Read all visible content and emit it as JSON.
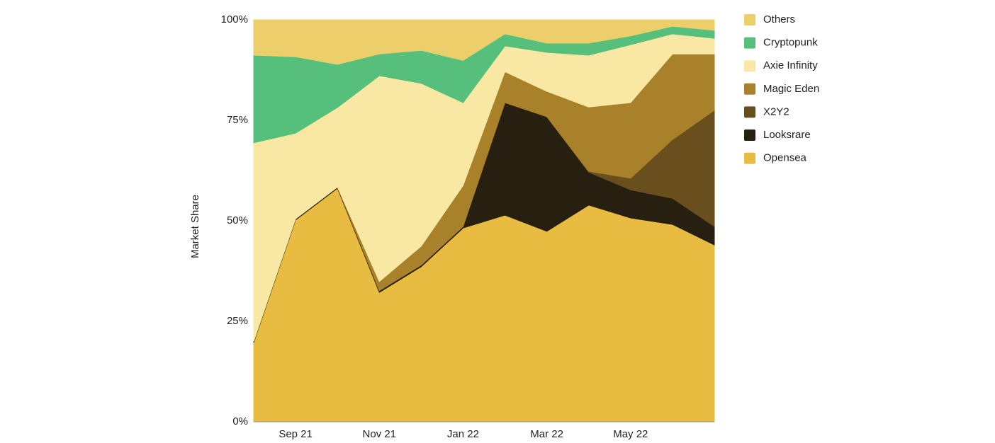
{
  "chart_data": {
    "type": "stacked_area",
    "y_label": "Market Share",
    "categories": [
      null,
      "Sep 21",
      null,
      "Nov 21",
      null,
      "Jan 22",
      null,
      "Mar 22",
      null,
      "May 22",
      null,
      null
    ],
    "series": [
      {
        "name": "Opensea",
        "color": "#e8bc41",
        "values": [
          19.7,
          50.2,
          58.1,
          32.2,
          38.6,
          48.2,
          51.4,
          47.4,
          53.9,
          50.7,
          49.1,
          44.0
        ]
      },
      {
        "name": "Looksrare",
        "color": "#271f10",
        "values": [
          0.3,
          0.3,
          0.3,
          0.4,
          0.4,
          0.4,
          28.0,
          28.5,
          8.2,
          7.0,
          6.5,
          4.6
        ]
      },
      {
        "name": "X2Y2",
        "color": "#694f1e",
        "values": [
          0,
          0,
          0,
          0,
          0,
          0,
          0,
          0,
          0.2,
          2.9,
          14.6,
          28.9
        ]
      },
      {
        "name": "Magic Eden",
        "color": "#a8812a",
        "values": [
          0,
          0,
          0,
          2.3,
          4.7,
          10.2,
          7.7,
          6.3,
          16.0,
          18.8,
          21.3,
          14.0
        ]
      },
      {
        "name": "Axie Infinity",
        "color": "#f8e8a3",
        "values": [
          49.4,
          21.3,
          19.8,
          51.2,
          40.5,
          20.6,
          6.4,
          9.7,
          12.9,
          14.4,
          5.0,
          3.9
        ]
      },
      {
        "name": "Cryptopunk",
        "color": "#57bf7c",
        "values": [
          21.8,
          19.0,
          10.7,
          5.4,
          8.2,
          10.5,
          3.0,
          2.3,
          3.0,
          2.2,
          1.9,
          2.0
        ]
      },
      {
        "name": "Others",
        "color": "#eccf6b",
        "values": [
          8.8,
          9.2,
          11.1,
          8.5,
          7.6,
          10.1,
          3.5,
          5.8,
          5.8,
          4.0,
          1.6,
          2.6
        ]
      }
    ],
    "ylim": [
      0,
      100
    ],
    "yticks": [
      {
        "value": 0,
        "label": "0%"
      },
      {
        "value": 25,
        "label": "25%"
      },
      {
        "value": 50,
        "label": "50%"
      },
      {
        "value": 75,
        "label": "75%"
      },
      {
        "value": 100,
        "label": "100%"
      }
    ],
    "legend": "right"
  }
}
